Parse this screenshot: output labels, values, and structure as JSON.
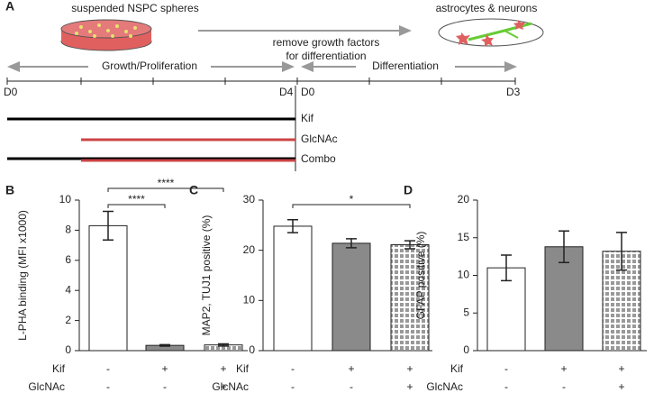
{
  "panel_a": {
    "label": "A",
    "left_image_caption": "suspended NSPC spheres",
    "right_image_caption": "astrocytes & neurons",
    "transition_text": [
      "remove growth factors",
      "for differentiation"
    ],
    "phases": [
      "Growth/Proliferation",
      "Differentiation"
    ],
    "day_labels": [
      "D0",
      "D4",
      "D0",
      "D3"
    ],
    "treatments": [
      "Kif",
      "GlcNAc",
      "Combo"
    ]
  },
  "chart_data": [
    {
      "label": "B",
      "type": "bar",
      "ylabel": "L-PHA binding (MFI x1000)",
      "values": [
        8.3,
        0.35,
        0.38
      ],
      "errors": [
        0.95,
        0.05,
        0.07
      ],
      "bar_fills": [
        "#ffffff",
        "#8a8a8a",
        "checker"
      ],
      "ylim": [
        0,
        10
      ],
      "yticks": [
        0,
        2,
        4,
        6,
        8,
        10
      ],
      "conditions": [
        {
          "name": "Kif",
          "values": [
            "-",
            "+",
            "+"
          ]
        },
        {
          "name": "GlcNAc",
          "values": [
            "-",
            "-",
            "+"
          ]
        }
      ],
      "significance": [
        {
          "from": 0,
          "to": 1,
          "label": "****"
        },
        {
          "from": 0,
          "to": 2,
          "label": "****"
        }
      ]
    },
    {
      "label": "C",
      "type": "bar",
      "ylabel": "MAP2, TUJ1 positive (%)",
      "values": [
        24.8,
        21.4,
        21.1
      ],
      "errors": [
        1.3,
        0.9,
        0.8
      ],
      "bar_fills": [
        "#ffffff",
        "#8a8a8a",
        "checker"
      ],
      "ylim": [
        0,
        30
      ],
      "yticks": [
        0,
        10,
        20,
        30
      ],
      "conditions": [
        {
          "name": "Kif",
          "values": [
            "-",
            "+",
            "+"
          ]
        },
        {
          "name": "GlcNAc",
          "values": [
            "-",
            "-",
            "+"
          ]
        }
      ],
      "significance": [
        {
          "from": 0,
          "to": 2,
          "label": "*"
        }
      ]
    },
    {
      "label": "D",
      "type": "bar",
      "ylabel": "GFAP positive (%)",
      "values": [
        11.0,
        13.8,
        13.2
      ],
      "errors": [
        1.7,
        2.1,
        2.5
      ],
      "bar_fills": [
        "#ffffff",
        "#8a8a8a",
        "checker"
      ],
      "ylim": [
        0,
        20
      ],
      "yticks": [
        0,
        5,
        10,
        15,
        20
      ],
      "conditions": [
        {
          "name": "Kif",
          "values": [
            "-",
            "+",
            "+"
          ]
        },
        {
          "name": "GlcNAc",
          "values": [
            "-",
            "-",
            "+"
          ]
        }
      ],
      "significance": []
    }
  ]
}
